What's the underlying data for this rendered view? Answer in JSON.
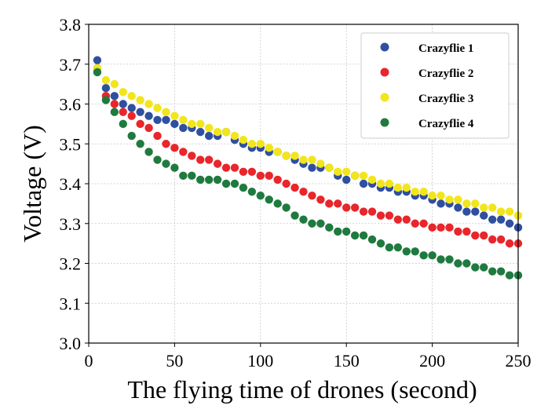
{
  "chart_data": {
    "type": "scatter",
    "xlabel": "The flying time of drones (second)",
    "ylabel": "Voltage (V)",
    "xlim": [
      0,
      250
    ],
    "ylim": [
      3.0,
      3.8
    ],
    "xticks": [
      0,
      50,
      100,
      150,
      200,
      250
    ],
    "yticks": [
      3.0,
      3.1,
      3.2,
      3.3,
      3.4,
      3.5,
      3.6,
      3.7,
      3.8
    ],
    "xtick_labels": [
      "0",
      "50",
      "100",
      "150",
      "200",
      "250"
    ],
    "ytick_labels": [
      "3.0",
      "3.1",
      "3.2",
      "3.3",
      "3.4",
      "3.5",
      "3.6",
      "3.7",
      "3.8"
    ],
    "grid": true,
    "legend_position": "top-right",
    "series": [
      {
        "name": "Crazyflie 1",
        "color": "#2f4f9f",
        "x": [
          5,
          10,
          15,
          20,
          25,
          30,
          35,
          40,
          45,
          50,
          55,
          60,
          65,
          70,
          75,
          80,
          85,
          90,
          95,
          100,
          105,
          110,
          115,
          120,
          125,
          130,
          135,
          140,
          145,
          150,
          155,
          160,
          165,
          170,
          175,
          180,
          185,
          190,
          195,
          200,
          205,
          210,
          215,
          220,
          225,
          230,
          235,
          240,
          245,
          250
        ],
        "y": [
          3.71,
          3.64,
          3.62,
          3.6,
          3.59,
          3.58,
          3.57,
          3.56,
          3.56,
          3.55,
          3.54,
          3.54,
          3.53,
          3.52,
          3.52,
          3.53,
          3.51,
          3.5,
          3.49,
          3.49,
          3.48,
          3.48,
          3.47,
          3.46,
          3.45,
          3.44,
          3.44,
          3.44,
          3.42,
          3.41,
          3.42,
          3.4,
          3.4,
          3.39,
          3.39,
          3.38,
          3.38,
          3.37,
          3.37,
          3.36,
          3.35,
          3.35,
          3.34,
          3.33,
          3.33,
          3.32,
          3.31,
          3.31,
          3.3,
          3.29
        ]
      },
      {
        "name": "Crazyflie 2",
        "color": "#e8262c",
        "x": [
          5,
          10,
          15,
          20,
          25,
          30,
          35,
          40,
          45,
          50,
          55,
          60,
          65,
          70,
          75,
          80,
          85,
          90,
          95,
          100,
          105,
          110,
          115,
          120,
          125,
          130,
          135,
          140,
          145,
          150,
          155,
          160,
          165,
          170,
          175,
          180,
          185,
          190,
          195,
          200,
          205,
          210,
          215,
          220,
          225,
          230,
          235,
          240,
          245,
          250
        ],
        "y": [
          3.69,
          3.62,
          3.6,
          3.58,
          3.57,
          3.55,
          3.54,
          3.52,
          3.5,
          3.49,
          3.48,
          3.47,
          3.46,
          3.46,
          3.45,
          3.44,
          3.44,
          3.43,
          3.43,
          3.42,
          3.42,
          3.41,
          3.4,
          3.39,
          3.38,
          3.37,
          3.36,
          3.35,
          3.35,
          3.34,
          3.34,
          3.33,
          3.33,
          3.32,
          3.32,
          3.31,
          3.31,
          3.3,
          3.3,
          3.29,
          3.29,
          3.29,
          3.28,
          3.28,
          3.27,
          3.27,
          3.26,
          3.26,
          3.25,
          3.25
        ]
      },
      {
        "name": "Crazyflie 3",
        "color": "#f2e51c",
        "x": [
          5,
          10,
          15,
          20,
          25,
          30,
          35,
          40,
          45,
          50,
          55,
          60,
          65,
          70,
          75,
          80,
          85,
          90,
          95,
          100,
          105,
          110,
          115,
          120,
          125,
          130,
          135,
          140,
          145,
          150,
          155,
          160,
          165,
          170,
          175,
          180,
          185,
          190,
          195,
          200,
          205,
          210,
          215,
          220,
          225,
          230,
          235,
          240,
          245,
          250
        ],
        "y": [
          3.69,
          3.66,
          3.65,
          3.63,
          3.62,
          3.61,
          3.6,
          3.59,
          3.58,
          3.57,
          3.56,
          3.55,
          3.55,
          3.54,
          3.53,
          3.53,
          3.52,
          3.51,
          3.5,
          3.5,
          3.49,
          3.48,
          3.47,
          3.47,
          3.46,
          3.46,
          3.45,
          3.44,
          3.43,
          3.43,
          3.42,
          3.42,
          3.41,
          3.4,
          3.4,
          3.39,
          3.39,
          3.38,
          3.38,
          3.37,
          3.37,
          3.36,
          3.36,
          3.35,
          3.35,
          3.34,
          3.34,
          3.33,
          3.33,
          3.32
        ]
      },
      {
        "name": "Crazyflie 4",
        "color": "#1f7a3f",
        "x": [
          5,
          10,
          15,
          20,
          25,
          30,
          35,
          40,
          45,
          50,
          55,
          60,
          65,
          70,
          75,
          80,
          85,
          90,
          95,
          100,
          105,
          110,
          115,
          120,
          125,
          130,
          135,
          140,
          145,
          150,
          155,
          160,
          165,
          170,
          175,
          180,
          185,
          190,
          195,
          200,
          205,
          210,
          215,
          220,
          225,
          230,
          235,
          240,
          245,
          250
        ],
        "y": [
          3.68,
          3.61,
          3.58,
          3.55,
          3.52,
          3.5,
          3.48,
          3.46,
          3.45,
          3.44,
          3.42,
          3.42,
          3.41,
          3.41,
          3.41,
          3.4,
          3.4,
          3.39,
          3.38,
          3.37,
          3.36,
          3.35,
          3.34,
          3.32,
          3.31,
          3.3,
          3.3,
          3.29,
          3.28,
          3.28,
          3.27,
          3.27,
          3.26,
          3.25,
          3.24,
          3.24,
          3.23,
          3.23,
          3.22,
          3.22,
          3.21,
          3.21,
          3.2,
          3.2,
          3.19,
          3.19,
          3.18,
          3.18,
          3.17,
          3.17
        ]
      }
    ]
  }
}
